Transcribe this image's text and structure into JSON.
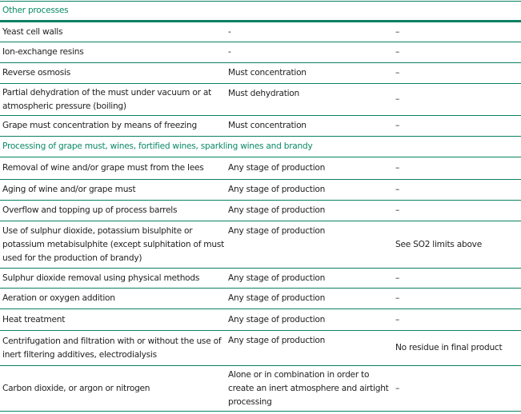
{
  "sections": [
    {
      "title": "Other processes",
      "rows": [
        [
          "Yeast cell walls",
          "-",
          "–"
        ],
        [
          "Ion-exchange resins",
          "-",
          "–"
        ],
        [
          "Reverse osmosis",
          "Must concentration",
          "–"
        ],
        [
          "Partial dehydration of the must under vacuum or at atmospheric pressure (boiling)",
          "Must dehydration",
          "–"
        ],
        [
          "Grape must concentration by means of freezing",
          "Must concentration",
          "–"
        ]
      ]
    },
    {
      "title": "Processing of grape must, wines, fortified wines, sparkling wines and brandy",
      "rows": [
        [
          "Removal of wine and/or grape must from the lees",
          "Any stage of production",
          "–"
        ],
        [
          "Aging of wine and/or grape must",
          "Any stage of production",
          "–"
        ],
        [
          "Overflow and topping up of process barrels",
          "Any stage of production",
          "–"
        ],
        [
          "Use of sulphur dioxide, potassium bisulphite or potassium metabisulphite (except sulphitation of must used for the production of brandy)",
          "Any stage of production",
          "See SO2 limits above"
        ],
        [
          "Sulphur dioxide removal using physical methods",
          "Any stage of production",
          "–"
        ],
        [
          "Aeration or oxygen addition",
          "Any stage of production",
          "–"
        ],
        [
          "Heat treatment",
          "Any stage of production",
          "–"
        ],
        [
          "Centrifugation and filtration with or without the use of inert filtering additives, electrodialysis",
          "Any stage of production",
          "No residue in final product"
        ],
        [
          "Carbon dioxide, or argon or nitrogen",
          "Alone or in combination in order to create an inert atmosphere and airtight processing",
          "–"
        ]
      ]
    }
  ]
}
